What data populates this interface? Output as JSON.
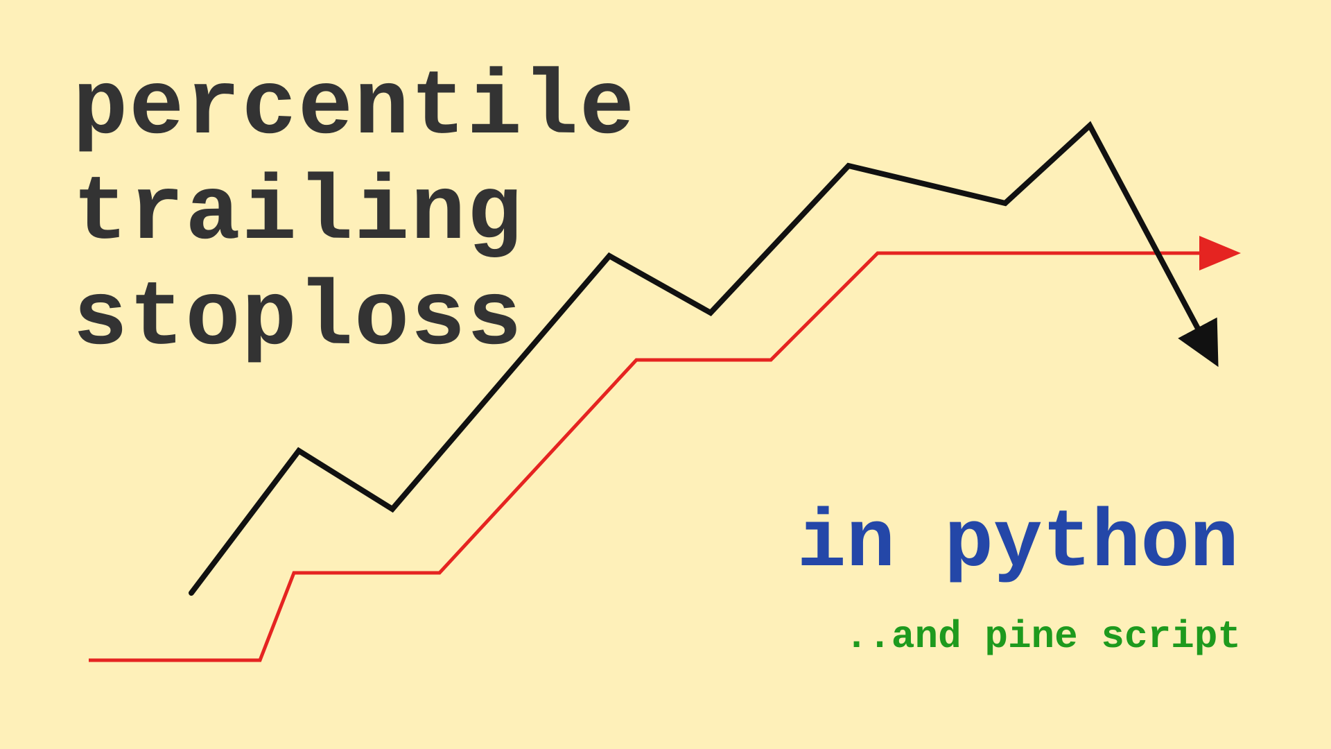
{
  "title": {
    "lines": [
      "percentile",
      "trailing",
      "stoploss"
    ]
  },
  "subtitle": {
    "main": "in python",
    "secondary": "..and pine script"
  },
  "colors": {
    "background": "#fef0b9",
    "title": "#333333",
    "python": "#2447a8",
    "pine": "#1e9a1e",
    "price_line": "#111111",
    "stop_line": "#e52421"
  },
  "illustration": {
    "price_line_icon": "down-trend-arrow-icon",
    "stop_line_icon": "right-arrow-icon"
  }
}
